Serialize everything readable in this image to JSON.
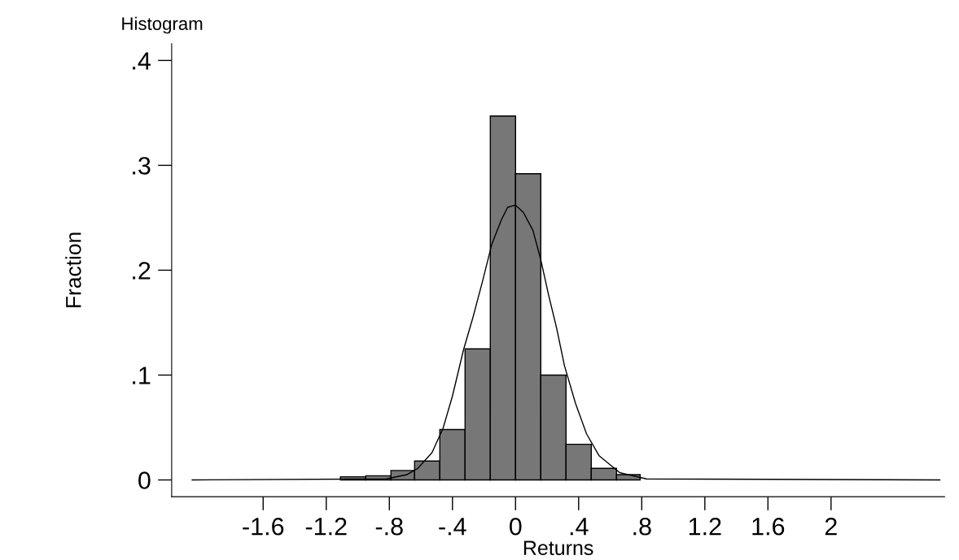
{
  "chart_data": {
    "type": "histogram",
    "title": "Histogram",
    "xlabel": "Returns",
    "ylabel": "Fraction",
    "bins": [
      -1.11,
      -0.95,
      -0.79,
      -0.64,
      -0.48,
      -0.32,
      -0.16,
      0,
      0.16,
      0.32,
      0.48,
      0.64,
      0.79
    ],
    "values": [
      0.003,
      0.004,
      0.009,
      0.018,
      0.048,
      0.125,
      0.347,
      0.292,
      0.1,
      0.034,
      0.011,
      0.005
    ],
    "color": "#777777",
    "series": [
      {
        "type": "line",
        "color": "#000000",
        "x": [
          -2.05,
          -0.82,
          -0.69,
          -0.62,
          -0.53,
          -0.46,
          -0.4,
          -0.33,
          -0.27,
          -0.21,
          -0.15,
          -0.09,
          -0.05,
          0,
          0.05,
          0.11,
          0.16,
          0.21,
          0.26,
          0.31,
          0.38,
          0.45,
          0.53,
          0.66,
          0.83,
          2.69
        ],
        "values": [
          0,
          0.001,
          0.005,
          0.011,
          0.026,
          0.049,
          0.08,
          0.124,
          0.155,
          0.189,
          0.225,
          0.248,
          0.26,
          0.262,
          0.255,
          0.238,
          0.21,
          0.176,
          0.145,
          0.109,
          0.073,
          0.044,
          0.023,
          0.007,
          0.001,
          0
        ]
      }
    ],
    "xlim": [
      -2.18,
      2.72
    ],
    "ylim": [
      -0.016,
      0.416
    ],
    "xticks": [
      {
        "value": -1.6,
        "label": "-1.6"
      },
      {
        "value": -1.2,
        "label": "-1.2"
      },
      {
        "value": -0.8,
        "label": "-.8"
      },
      {
        "value": -0.4,
        "label": "-.4"
      },
      0,
      {
        "value": 0.4,
        "label": ".4"
      },
      {
        "value": 0.8,
        "label": ".8"
      },
      {
        "value": 1.2,
        "label": "1.2"
      },
      {
        "value": 1.6,
        "label": "1.6"
      },
      2
    ],
    "yticks": [
      0,
      {
        "value": 0.1,
        "label": ".1"
      },
      {
        "value": 0.2,
        "label": ".2"
      },
      {
        "value": 0.3,
        "label": ".3"
      },
      {
        "value": 0.4,
        "label": ".4"
      }
    ],
    "grid": false
  }
}
